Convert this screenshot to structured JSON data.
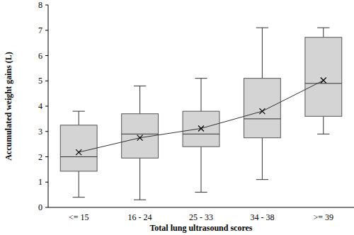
{
  "chart_data": {
    "type": "box",
    "x_label": "Total lung ultrasound scores",
    "y_label": "Accumulated weight gains (L)",
    "categories": [
      "<= 15",
      "16 - 24",
      "25 - 33",
      "34 - 38",
      ">= 39"
    ],
    "min": [
      0.4,
      0.3,
      0.6,
      1.1,
      2.9
    ],
    "q1": [
      1.43,
      1.95,
      2.4,
      2.75,
      3.6
    ],
    "median": [
      2.0,
      2.9,
      2.9,
      3.5,
      4.9
    ],
    "q3": [
      3.25,
      3.7,
      3.8,
      5.1,
      6.72
    ],
    "max": [
      3.8,
      4.8,
      5.1,
      7.1,
      7.1
    ],
    "mean": [
      2.18,
      2.75,
      3.12,
      3.8,
      5.02
    ],
    "color": "#d4d4d4",
    "marker": "x",
    "ylim": [
      0,
      8
    ],
    "yticks": [
      0,
      1,
      2,
      3,
      4,
      5,
      6,
      7,
      8
    ],
    "grid": false
  }
}
